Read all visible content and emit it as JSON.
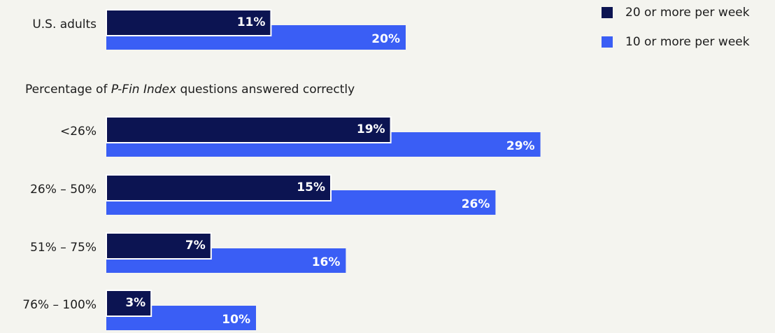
{
  "chart_data": {
    "type": "bar",
    "orientation": "horizontal",
    "categories": [
      "U.S. adults",
      "<26%",
      "26% – 50%",
      "51% – 75%",
      "76% – 100%"
    ],
    "group_label": {
      "before": "Percentage of ",
      "italic": "P-Fin Index",
      "after": " questions answered correctly"
    },
    "series": [
      {
        "name": "20 or more per week",
        "color": "#0c1452",
        "values": [
          11,
          19,
          15,
          7,
          3
        ],
        "value_labels": [
          "11%",
          "19%",
          "15%",
          "7%",
          "3%"
        ]
      },
      {
        "name": "10 or more per week",
        "color": "#3a5ef5",
        "values": [
          20,
          29,
          26,
          16,
          10
        ],
        "value_labels": [
          "20%",
          "29%",
          "26%",
          "16%",
          "10%"
        ]
      }
    ]
  }
}
